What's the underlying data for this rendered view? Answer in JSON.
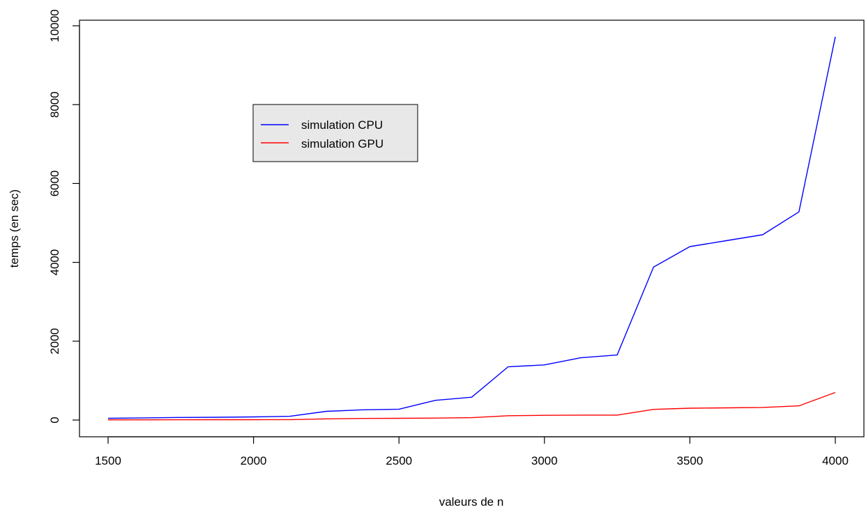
{
  "chart_data": {
    "type": "line",
    "title": "",
    "xlabel": "valeurs de n",
    "ylabel": "temps (en sec)",
    "xlim": [
      1500,
      4000
    ],
    "ylim": [
      0,
      10000
    ],
    "x_ticks": [
      1500,
      2000,
      2500,
      3000,
      3500,
      4000
    ],
    "y_ticks": [
      0,
      2000,
      4000,
      6000,
      8000,
      10000
    ],
    "x_tick_labels": [
      "1500",
      "2000",
      "2500",
      "3000",
      "3500",
      "4000"
    ],
    "y_tick_labels": [
      "0",
      "2000",
      "4000",
      "6000",
      "8000",
      "10000"
    ],
    "grid": false,
    "legend_position": "upper-left-center",
    "x": [
      1500,
      1625,
      1750,
      1875,
      2000,
      2125,
      2250,
      2375,
      2500,
      2625,
      2750,
      2875,
      3000,
      3125,
      3250,
      3375,
      3500,
      3625,
      3750,
      3875,
      4000
    ],
    "series": [
      {
        "name": "simulation CPU",
        "color": "#0000ff",
        "values": [
          45,
          55,
          65,
          70,
          80,
          95,
          220,
          260,
          275,
          500,
          580,
          1350,
          1400,
          1580,
          1650,
          3880,
          4400,
          4550,
          4700,
          5280,
          9720
        ]
      },
      {
        "name": "simulation GPU",
        "color": "#ff0000",
        "values": [
          5,
          6,
          7,
          8,
          9,
          10,
          30,
          40,
          45,
          50,
          60,
          110,
          120,
          125,
          125,
          270,
          300,
          310,
          320,
          360,
          700
        ]
      }
    ]
  }
}
